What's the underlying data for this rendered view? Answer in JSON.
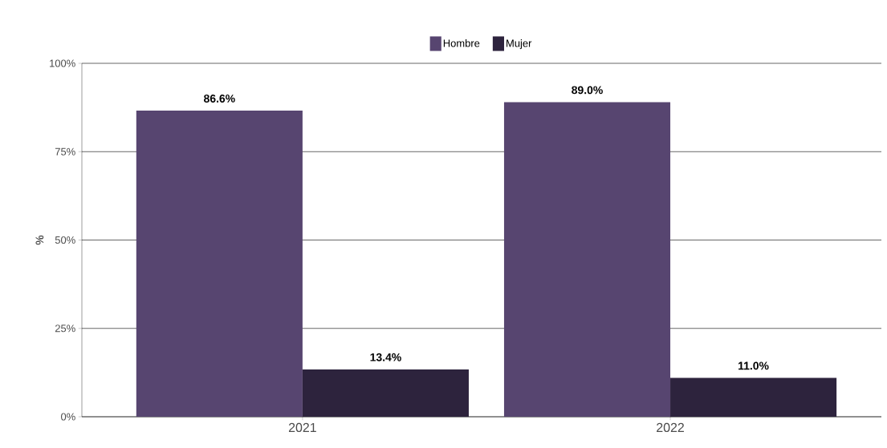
{
  "chart_data": {
    "type": "bar",
    "ylabel": "%",
    "categories": [
      "2021",
      "2022"
    ],
    "series": [
      {
        "name": "Hombre",
        "color": "#574570",
        "values": [
          86.6,
          89.0
        ],
        "value_labels": [
          "86.6%",
          "89.0%"
        ]
      },
      {
        "name": "Mujer",
        "color": "#2d233d",
        "values": [
          13.4,
          11.0
        ],
        "value_labels": [
          "13.4%",
          "11.0%"
        ]
      }
    ],
    "ylim": [
      0,
      100
    ],
    "yticks": [
      {
        "value": 0,
        "label": "0%"
      },
      {
        "value": 25,
        "label": "25%"
      },
      {
        "value": 50,
        "label": "50%"
      },
      {
        "value": 75,
        "label": "75%"
      },
      {
        "value": 100,
        "label": "100%"
      }
    ],
    "grid": "y",
    "legend": "top"
  }
}
